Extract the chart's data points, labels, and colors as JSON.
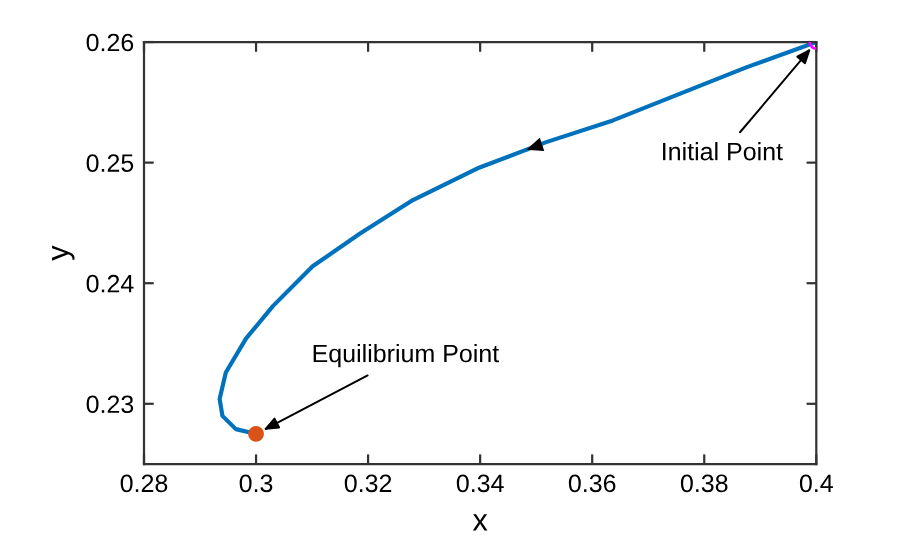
{
  "chart_data": {
    "type": "line",
    "xlabel": "x",
    "ylabel": "y",
    "xlim": [
      0.28,
      0.4
    ],
    "ylim": [
      0.225,
      0.26
    ],
    "xticks": [
      0.28,
      0.3,
      0.32,
      0.34,
      0.36,
      0.38,
      0.4
    ],
    "yticks": [
      0.23,
      0.24,
      0.25,
      0.26
    ],
    "grid": false,
    "legend": false,
    "series": [
      {
        "color": "#0072bd",
        "x": [
          0.4,
          0.3875,
          0.3756,
          0.3637,
          0.3518,
          0.3399,
          0.328,
          0.3185,
          0.3101,
          0.303,
          0.2982,
          0.2946,
          0.2935,
          0.294,
          0.2964,
          0.3
        ],
        "values": [
          0.26,
          0.2579,
          0.2557,
          0.2535,
          0.2517,
          0.2496,
          0.2469,
          0.2441,
          0.2414,
          0.2381,
          0.2354,
          0.2326,
          0.2304,
          0.229,
          0.2279,
          0.2275
        ]
      },
      {
        "type": "scatter",
        "color": "#ff00ff",
        "marker": "circle",
        "x": [
          0.4
        ],
        "values": [
          0.26
        ]
      },
      {
        "type": "scatter",
        "color": "#d95319",
        "marker": "circle",
        "x": [
          0.3
        ],
        "values": [
          0.2275
        ]
      }
    ],
    "annotations": [
      {
        "text": "Initial Point",
        "x": 0.4,
        "y": 0.26
      },
      {
        "text": "Equilibrium Point",
        "x": 0.3,
        "y": 0.2275
      }
    ]
  }
}
